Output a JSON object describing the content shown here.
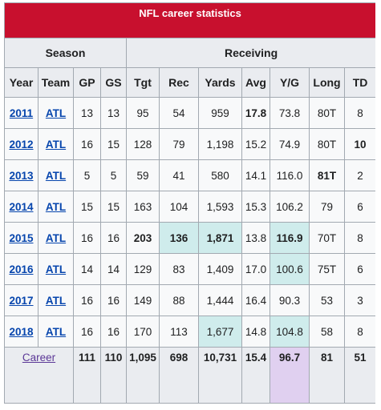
{
  "title": "NFL career statistics",
  "groups": {
    "season": "Season",
    "receiving": "Receiving"
  },
  "headers": [
    "Year",
    "Team",
    "GP",
    "GS",
    "Tgt",
    "Rec",
    "Yards",
    "Avg",
    "Y/G",
    "Long",
    "TD"
  ],
  "rows": [
    {
      "year": "2011",
      "team": "ATL",
      "gp": "13",
      "gs": "13",
      "tgt": "95",
      "rec": "54",
      "yards": "959",
      "avg": "17.8",
      "yg": "73.8",
      "long": "80T",
      "td": "8"
    },
    {
      "year": "2012",
      "team": "ATL",
      "gp": "16",
      "gs": "15",
      "tgt": "128",
      "rec": "79",
      "yards": "1,198",
      "avg": "15.2",
      "yg": "74.9",
      "long": "80T",
      "td": "10"
    },
    {
      "year": "2013",
      "team": "ATL",
      "gp": "5",
      "gs": "5",
      "tgt": "59",
      "rec": "41",
      "yards": "580",
      "avg": "14.1",
      "yg": "116.0",
      "long": "81T",
      "td": "2"
    },
    {
      "year": "2014",
      "team": "ATL",
      "gp": "15",
      "gs": "15",
      "tgt": "163",
      "rec": "104",
      "yards": "1,593",
      "avg": "15.3",
      "yg": "106.2",
      "long": "79",
      "td": "6"
    },
    {
      "year": "2015",
      "team": "ATL",
      "gp": "16",
      "gs": "16",
      "tgt": "203",
      "rec": "136",
      "yards": "1,871",
      "avg": "13.8",
      "yg": "116.9",
      "long": "70T",
      "td": "8"
    },
    {
      "year": "2016",
      "team": "ATL",
      "gp": "14",
      "gs": "14",
      "tgt": "129",
      "rec": "83",
      "yards": "1,409",
      "avg": "17.0",
      "yg": "100.6",
      "long": "75T",
      "td": "6"
    },
    {
      "year": "2017",
      "team": "ATL",
      "gp": "16",
      "gs": "16",
      "tgt": "149",
      "rec": "88",
      "yards": "1,444",
      "avg": "16.4",
      "yg": "90.3",
      "long": "53",
      "td": "3"
    },
    {
      "year": "2018",
      "team": "ATL",
      "gp": "16",
      "gs": "16",
      "tgt": "170",
      "rec": "113",
      "yards": "1,677",
      "avg": "14.8",
      "yg": "104.8",
      "long": "58",
      "td": "8"
    }
  ],
  "career": {
    "label": "Career",
    "gp": "111",
    "gs": "110",
    "tgt": "1,095",
    "rec": "698",
    "yards": "10,731",
    "avg": "15.4",
    "yg": "96.7",
    "long": "81",
    "td": "51"
  },
  "colors": {
    "title_bg": "#c8102e",
    "header_bg": "#eaecf0",
    "highlight_teal": "#cfecec",
    "highlight_purple": "#e0d0f0",
    "link": "#0645ad"
  }
}
